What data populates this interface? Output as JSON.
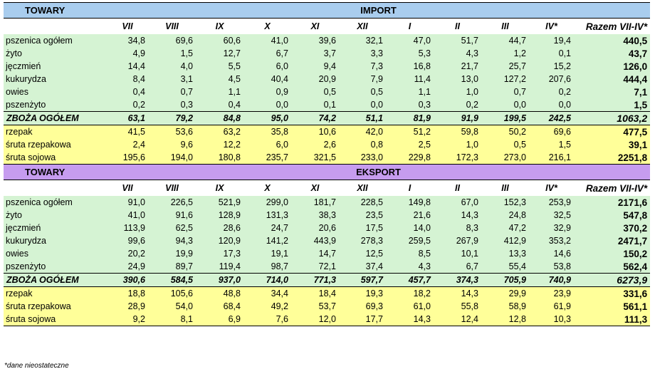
{
  "months": [
    "VII",
    "VIII",
    "IX",
    "X",
    "XI",
    "XII",
    "I",
    "II",
    "III",
    "IV*"
  ],
  "total_header": "Razem VII-IV*",
  "sections": [
    {
      "towary": "TOWARY",
      "title": "IMPORT",
      "rows": [
        {
          "name": "pszenica ogółem",
          "vals": [
            "34,8",
            "69,6",
            "60,6",
            "41,0",
            "39,6",
            "32,1",
            "47,0",
            "51,7",
            "44,7",
            "19,4"
          ],
          "total": "440,5"
        },
        {
          "name": "żyto",
          "vals": [
            "4,9",
            "1,5",
            "12,7",
            "6,7",
            "3,7",
            "3,3",
            "5,3",
            "4,3",
            "1,2",
            "0,1"
          ],
          "total": "43,7"
        },
        {
          "name": "jęczmień",
          "vals": [
            "14,4",
            "4,0",
            "5,5",
            "6,0",
            "9,4",
            "7,3",
            "16,8",
            "21,7",
            "25,7",
            "15,2"
          ],
          "total": "126,0"
        },
        {
          "name": "kukurydza",
          "vals": [
            "8,4",
            "3,1",
            "4,5",
            "40,4",
            "20,9",
            "7,9",
            "11,4",
            "13,0",
            "127,2",
            "207,6"
          ],
          "total": "444,4"
        },
        {
          "name": "owies",
          "vals": [
            "0,4",
            "0,7",
            "1,1",
            "0,9",
            "0,5",
            "0,5",
            "1,1",
            "1,0",
            "0,7",
            "0,2"
          ],
          "total": "7,1"
        },
        {
          "name": "pszenżyto",
          "vals": [
            "0,2",
            "0,3",
            "0,4",
            "0,0",
            "0,1",
            "0,0",
            "0,3",
            "0,2",
            "0,0",
            "0,0"
          ],
          "total": "1,5"
        }
      ],
      "sum": {
        "name": "ZBOŻA OGÓŁEM",
        "vals": [
          "63,1",
          "79,2",
          "84,8",
          "95,0",
          "74,2",
          "51,1",
          "81,9",
          "91,9",
          "199,5",
          "242,5"
        ],
        "total": "1063,2"
      },
      "extra": [
        {
          "name": "rzepak",
          "vals": [
            "41,5",
            "53,6",
            "63,2",
            "35,8",
            "10,6",
            "42,0",
            "51,2",
            "59,8",
            "50,2",
            "69,6"
          ],
          "total": "477,5"
        },
        {
          "name": "śruta rzepakowa",
          "vals": [
            "2,4",
            "9,6",
            "12,2",
            "6,0",
            "2,6",
            "0,8",
            "2,5",
            "1,0",
            "0,5",
            "1,5"
          ],
          "total": "39,1"
        },
        {
          "name": "śruta sojowa",
          "vals": [
            "195,6",
            "194,0",
            "180,8",
            "235,7",
            "321,5",
            "233,0",
            "229,8",
            "172,3",
            "273,0",
            "216,1"
          ],
          "total": "2251,8"
        }
      ]
    },
    {
      "towary": "TOWARY",
      "title": "EKSPORT",
      "rows": [
        {
          "name": "pszenica ogółem",
          "vals": [
            "91,0",
            "226,5",
            "521,9",
            "299,0",
            "181,7",
            "228,5",
            "149,8",
            "67,0",
            "152,3",
            "253,9"
          ],
          "total": "2171,6"
        },
        {
          "name": "żyto",
          "vals": [
            "41,0",
            "91,6",
            "128,9",
            "131,3",
            "38,3",
            "23,5",
            "21,6",
            "14,3",
            "24,8",
            "32,5"
          ],
          "total": "547,8"
        },
        {
          "name": "jęczmień",
          "vals": [
            "113,9",
            "62,5",
            "28,6",
            "24,7",
            "20,6",
            "17,5",
            "14,0",
            "8,3",
            "47,2",
            "32,9"
          ],
          "total": "370,2"
        },
        {
          "name": "kukurydza",
          "vals": [
            "99,6",
            "94,3",
            "120,9",
            "141,2",
            "443,9",
            "278,3",
            "259,5",
            "267,9",
            "412,9",
            "353,2"
          ],
          "total": "2471,7"
        },
        {
          "name": "owies",
          "vals": [
            "20,2",
            "19,9",
            "17,3",
            "19,1",
            "14,7",
            "12,5",
            "8,5",
            "10,1",
            "13,3",
            "14,6"
          ],
          "total": "150,2"
        },
        {
          "name": "pszenżyto",
          "vals": [
            "24,9",
            "89,7",
            "119,4",
            "98,7",
            "72,1",
            "37,4",
            "4,3",
            "6,7",
            "55,4",
            "53,8"
          ],
          "total": "562,4"
        }
      ],
      "sum": {
        "name": "ZBOŻA OGÓŁEM",
        "vals": [
          "390,6",
          "584,5",
          "937,0",
          "714,0",
          "771,3",
          "597,7",
          "457,7",
          "374,3",
          "705,9",
          "740,9"
        ],
        "total": "6273,9"
      },
      "extra": [
        {
          "name": "rzepak",
          "vals": [
            "18,8",
            "105,6",
            "48,8",
            "34,4",
            "18,4",
            "19,3",
            "18,2",
            "14,3",
            "29,9",
            "23,9"
          ],
          "total": "331,6"
        },
        {
          "name": "śruta rzepakowa",
          "vals": [
            "28,9",
            "54,0",
            "68,4",
            "49,2",
            "53,7",
            "69,3",
            "61,0",
            "55,8",
            "58,9",
            "61,9"
          ],
          "total": "561,1"
        },
        {
          "name": "śruta sojowa",
          "vals": [
            "9,2",
            "8,1",
            "6,9",
            "7,6",
            "12,0",
            "17,7",
            "14,3",
            "12,4",
            "12,8",
            "10,3"
          ],
          "total": "111,3"
        }
      ]
    }
  ],
  "footnote": "*dane nieostateczne"
}
